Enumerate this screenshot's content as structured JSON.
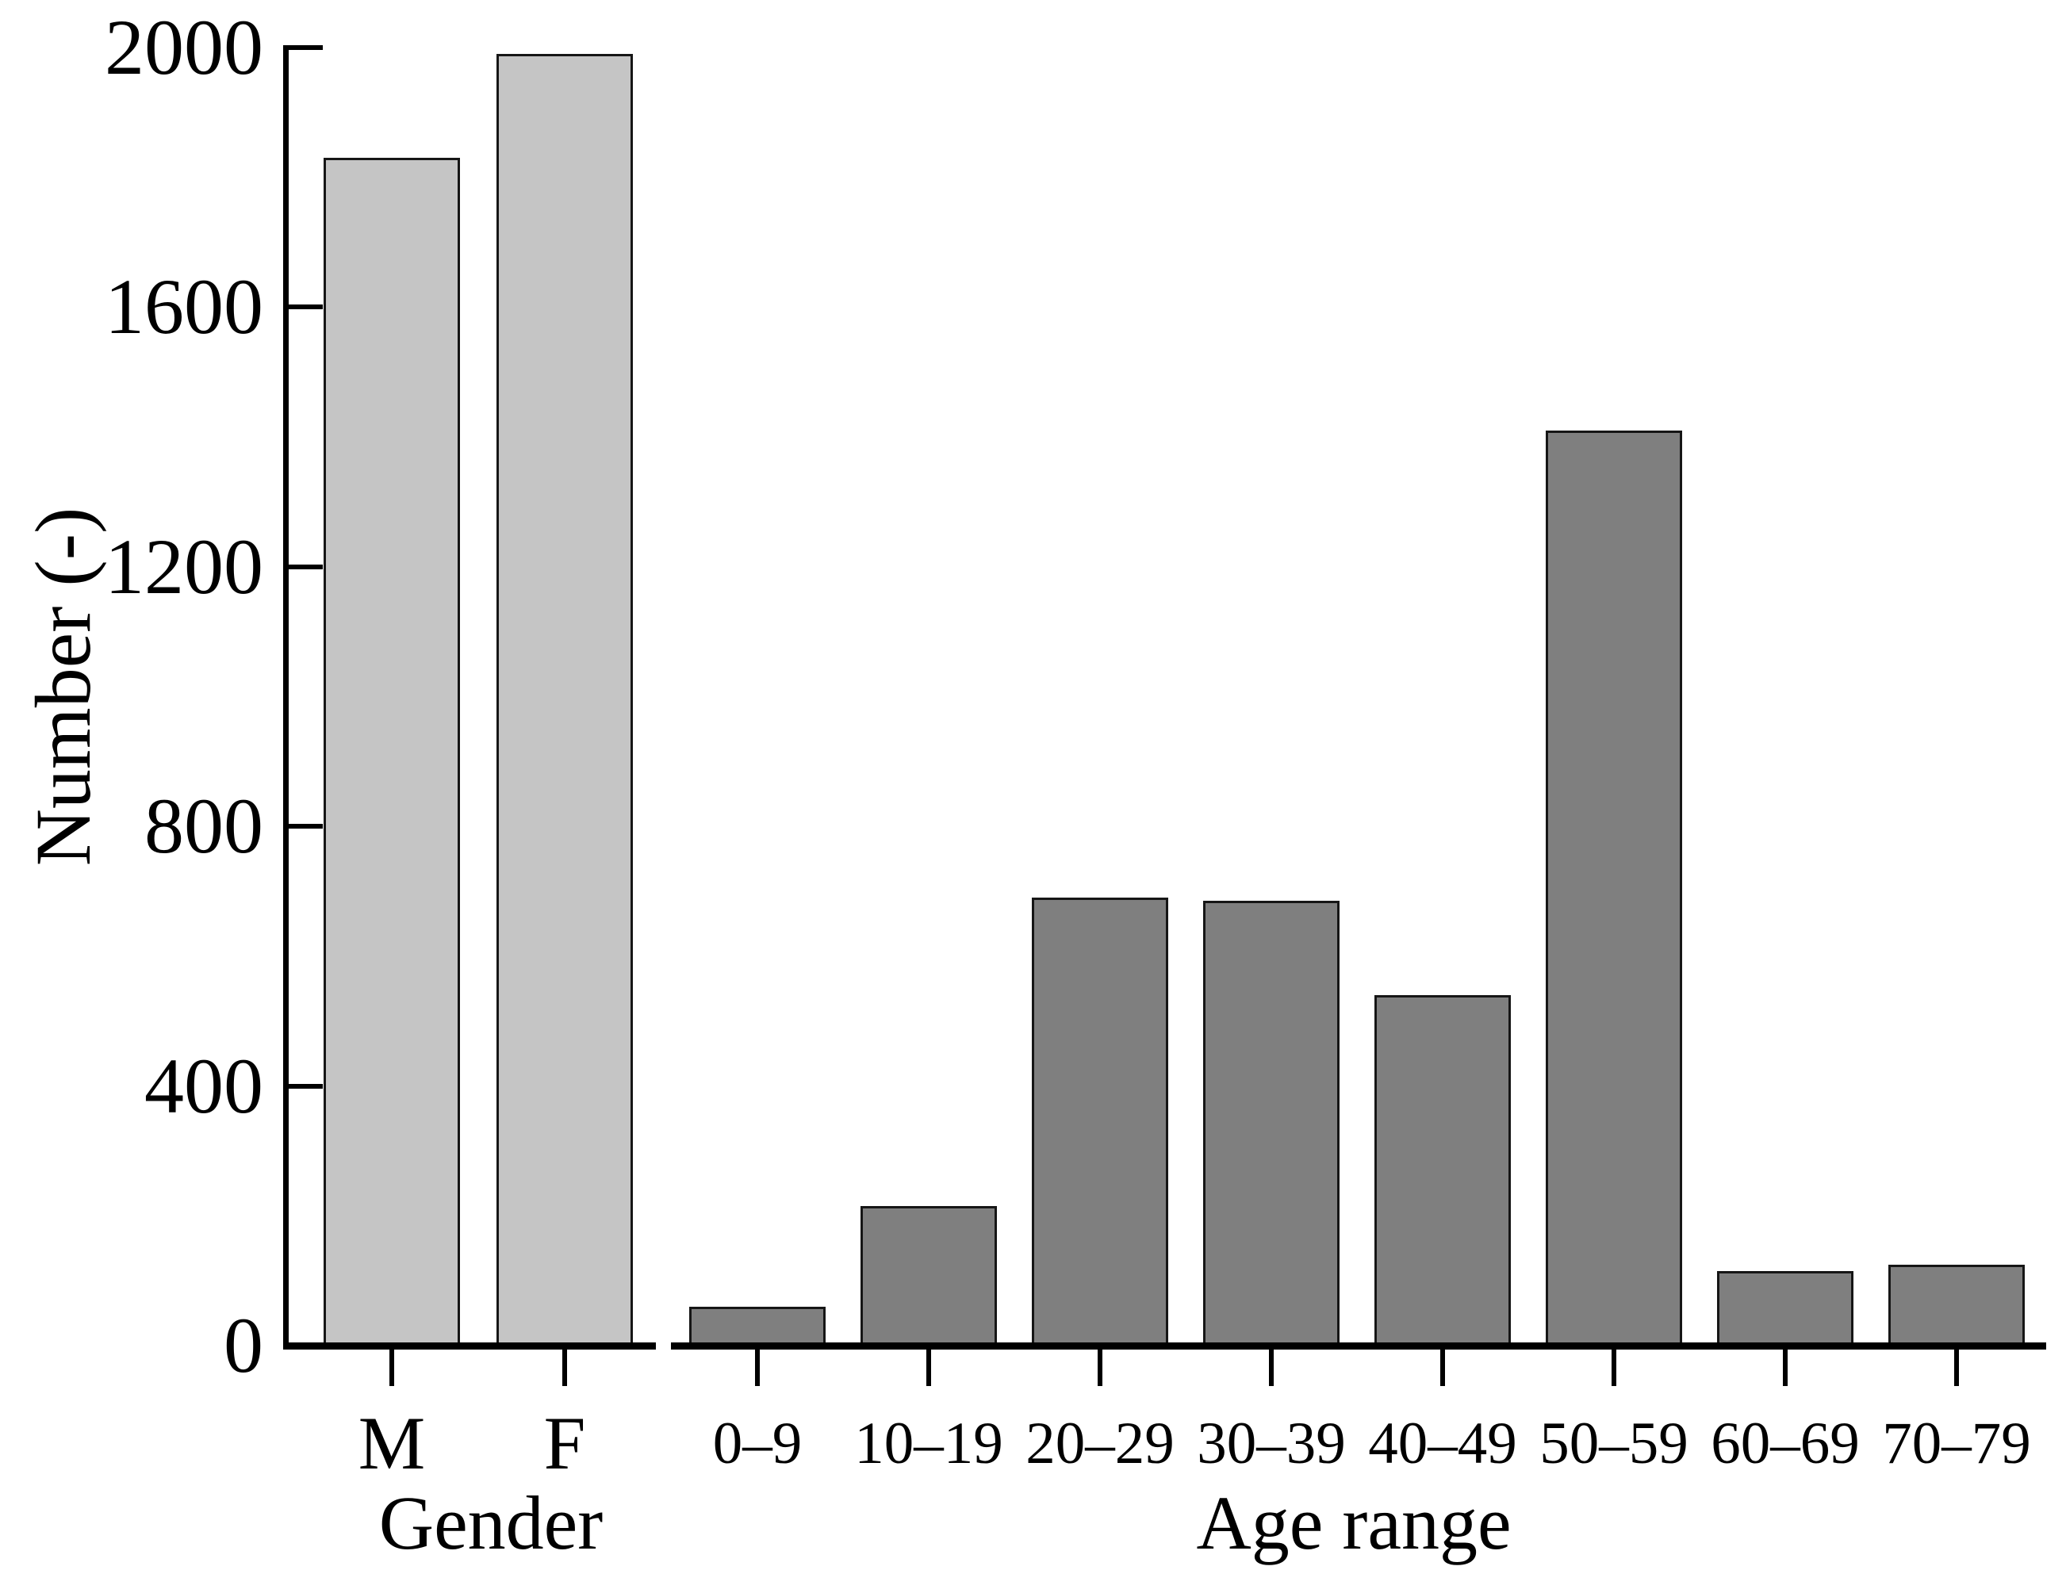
{
  "chart_data": {
    "type": "bar",
    "title": "",
    "xlabel": "",
    "ylabel": "Number (-)",
    "ylim": [
      0,
      2000
    ],
    "yticks": [
      2000,
      1600,
      1200,
      800,
      400,
      0
    ],
    "grid": false,
    "legend": false,
    "background_color": "#ffffff",
    "axis_color": "#000000",
    "groups": [
      {
        "label": "Gender",
        "categories": [
          "M",
          "F"
        ],
        "values": [
          1830,
          1990
        ],
        "bar_color": "#c5c5c5",
        "bar_edge_color": "#161616"
      },
      {
        "label": "Age range",
        "categories": [
          "0–9",
          "10–19",
          "20–29",
          "30–39",
          "40–49",
          "50–59",
          "60–69",
          "70–79"
        ],
        "values": [
          60,
          215,
          690,
          685,
          540,
          1410,
          115,
          125
        ],
        "bar_color": "#7f7f7f",
        "bar_edge_color": "#161616"
      }
    ]
  }
}
